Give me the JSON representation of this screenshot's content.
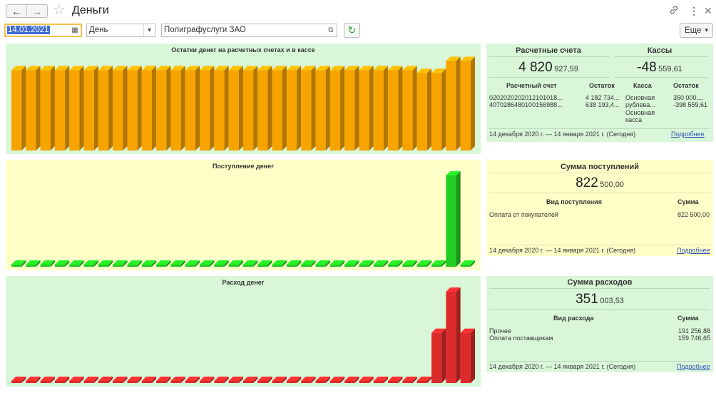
{
  "header": {
    "back_icon": "arrow-left-icon",
    "forward_icon": "arrow-right-icon",
    "title": "Деньги",
    "more_menu_icon": "vertical-dots-icon"
  },
  "toolbar": {
    "date_value": "14.01.2021",
    "period_value": "День",
    "organization_value": "Полиграфуслуги ЗАО",
    "more_label": "Еще"
  },
  "colors": {
    "balance_bar": "#f7a400",
    "income_bar": "#22cc22",
    "expense_bar": "#dd2a2a",
    "panel_green": "#d9f6d9",
    "panel_yellow": "#ffffc8"
  },
  "charts": [
    {
      "title": "Остатки денег на расчетных счетах и в кассе",
      "type": "bar",
      "bar_fractions": [
        0.88,
        0.88,
        0.88,
        0.88,
        0.88,
        0.88,
        0.88,
        0.88,
        0.88,
        0.88,
        0.88,
        0.88,
        0.88,
        0.88,
        0.88,
        0.88,
        0.88,
        0.88,
        0.88,
        0.88,
        0.88,
        0.88,
        0.88,
        0.88,
        0.88,
        0.88,
        0.88,
        0.88,
        0.85,
        0.85,
        0.98,
        0.98
      ]
    },
    {
      "title": "Поступление денег",
      "type": "bar",
      "bar_fractions": [
        0,
        0,
        0,
        0,
        0,
        0,
        0,
        0,
        0,
        0,
        0,
        0,
        0,
        0,
        0,
        0,
        0,
        0,
        0,
        0,
        0,
        0,
        0,
        0,
        0,
        0,
        0,
        0,
        0,
        0,
        1,
        0
      ]
    },
    {
      "title": "Расход денег",
      "type": "bar",
      "bar_fractions": [
        0,
        0,
        0,
        0,
        0,
        0,
        0,
        0,
        0,
        0,
        0,
        0,
        0,
        0,
        0,
        0,
        0,
        0,
        0,
        0,
        0,
        0,
        0,
        0,
        0,
        0,
        0,
        0,
        0,
        0.55,
        1,
        0.55
      ]
    }
  ],
  "balances": {
    "accounts_title": "Расчетные счета",
    "accounts_total_big": "4 820",
    "accounts_total_small": "927,59",
    "cash_title": "Кассы",
    "cash_total_big": "-48",
    "cash_total_small": "559,61",
    "col_account": "Расчетный счет",
    "col_balance": "Остаток",
    "col_cash": "Касса",
    "col_cash_balance": "Остаток",
    "accounts": [
      {
        "account": "0202020202012101018...",
        "balance": "4 182 734..."
      },
      {
        "account": "4070286480100156988...",
        "balance": "638 193,4..."
      }
    ],
    "cash_rows": [
      {
        "name": "Основная рублева...",
        "balance": "350 000,..."
      },
      {
        "name": "Основная касса",
        "balance": "-398 559,61"
      }
    ],
    "period": "14 декабря 2020 г. — 14 января 2021 г. (Сегодня)",
    "details_link": "Подробнее"
  },
  "income": {
    "title": "Сумма поступлений",
    "total_big": "822",
    "total_small": "500,00",
    "col_kind": "Вид поступления",
    "col_sum": "Сумма",
    "rows": [
      {
        "kind": "Оплата от покупателей",
        "sum": "822 500,00"
      }
    ],
    "period": "14 декабря 2020 г. — 14 января 2021 г. (Сегодня)",
    "details_link": "Подробнее"
  },
  "expense": {
    "title": "Сумма расходов",
    "total_big": "351",
    "total_small": "003,53",
    "col_kind": "Вид расхода",
    "col_sum": "Сумма",
    "rows": [
      {
        "kind": "Прочее",
        "sum": "191 256,88"
      },
      {
        "kind": "Оплата поставщикам",
        "sum": "159 746,65"
      }
    ],
    "period": "14 декабря 2020 г. — 14 января 2021 г. (Сегодня)",
    "details_link": "Подробнее"
  }
}
